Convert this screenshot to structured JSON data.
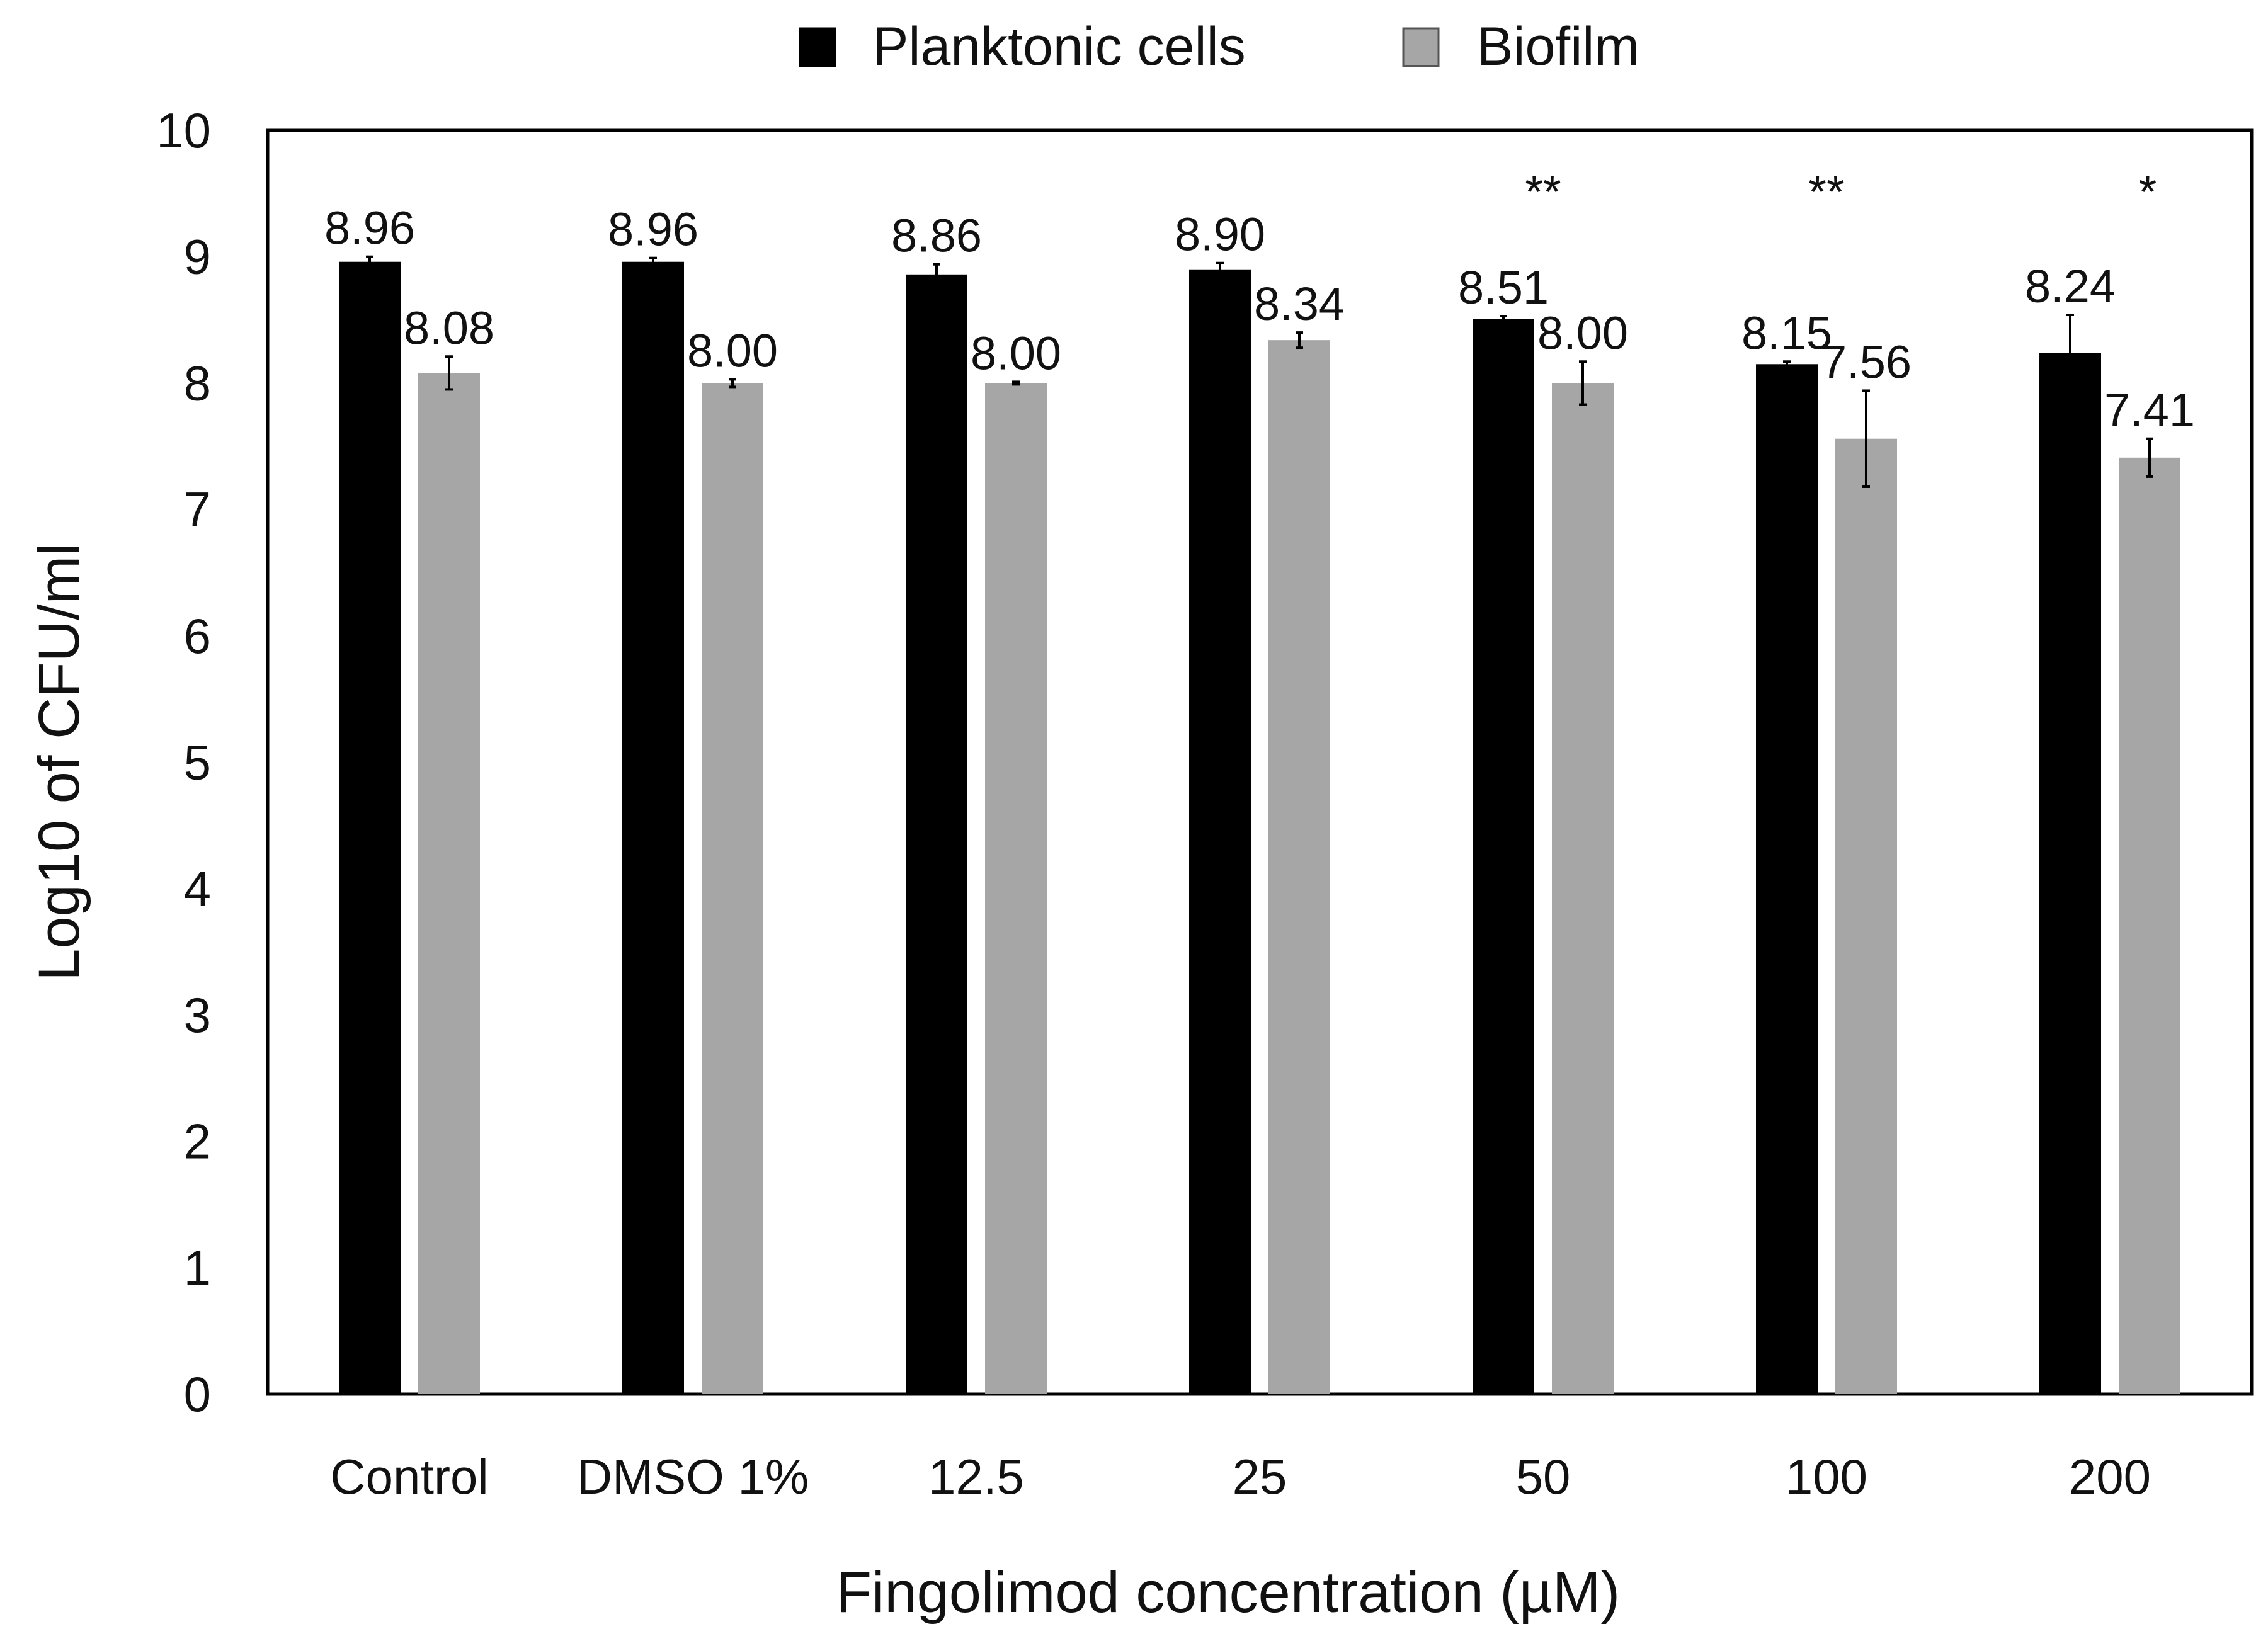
{
  "chart_data": {
    "type": "bar",
    "title": "",
    "xlabel": "Fingolimod concentration (µM)",
    "ylabel": "Log10 of CFU/ml",
    "ylim": [
      0,
      10
    ],
    "yticks": [
      "0",
      "1",
      "2",
      "3",
      "4",
      "5",
      "6",
      "7",
      "8",
      "9",
      "10"
    ],
    "grid": false,
    "legend_position": "top-center",
    "categories": [
      "Control",
      "DMSO 1%",
      "12.5",
      "25",
      "50",
      "100",
      "200"
    ],
    "series": [
      {
        "name": "Planktonic cells",
        "color": "#000000",
        "values": [
          8.96,
          8.96,
          8.86,
          8.9,
          8.51,
          8.15,
          8.24
        ],
        "labels": [
          "8.96",
          "8.96",
          "8.86",
          "8.90",
          "8.51",
          "8.15",
          "8.24"
        ],
        "errors": [
          0.04,
          0.03,
          0.08,
          0.05,
          0.02,
          0.02,
          0.3
        ]
      },
      {
        "name": "Biofilm",
        "color": "#a6a6a6",
        "values": [
          8.08,
          8.0,
          8.0,
          8.34,
          8.0,
          7.56,
          7.41
        ],
        "labels": [
          "8.08",
          "8.00",
          "8.00",
          "8.34",
          "8.00",
          "7.56",
          "7.41"
        ],
        "errors": [
          0.13,
          0.03,
          0.01,
          0.06,
          0.17,
          0.38,
          0.15
        ]
      }
    ],
    "significance": [
      "",
      "",
      "",
      "",
      "**",
      "**",
      "*"
    ]
  }
}
